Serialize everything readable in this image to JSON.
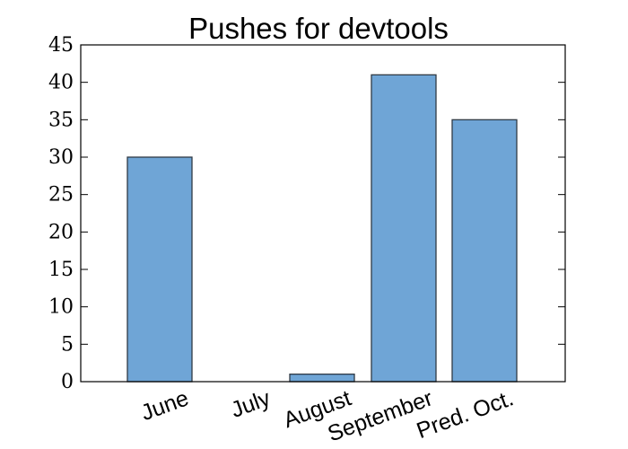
{
  "chart_data": {
    "type": "bar",
    "title": "Pushes for devtools",
    "xlabel": "",
    "ylabel": "",
    "categories": [
      "June",
      "July",
      "August",
      "September",
      "Pred. Oct."
    ],
    "values": [
      30,
      0,
      1,
      41,
      35
    ],
    "ylim": [
      0,
      45
    ],
    "yticks": [
      0,
      5,
      10,
      15,
      20,
      25,
      30,
      35,
      40,
      45
    ],
    "ytick_labels": [
      "0",
      "5",
      "10",
      "15",
      "20",
      "25",
      "30",
      "35",
      "40",
      "45"
    ],
    "xtick_rotation_deg": -20,
    "grid": false,
    "legend": "none",
    "bar_color": "#6fa5d6",
    "bar_edge_color": "#2f3a45"
  }
}
